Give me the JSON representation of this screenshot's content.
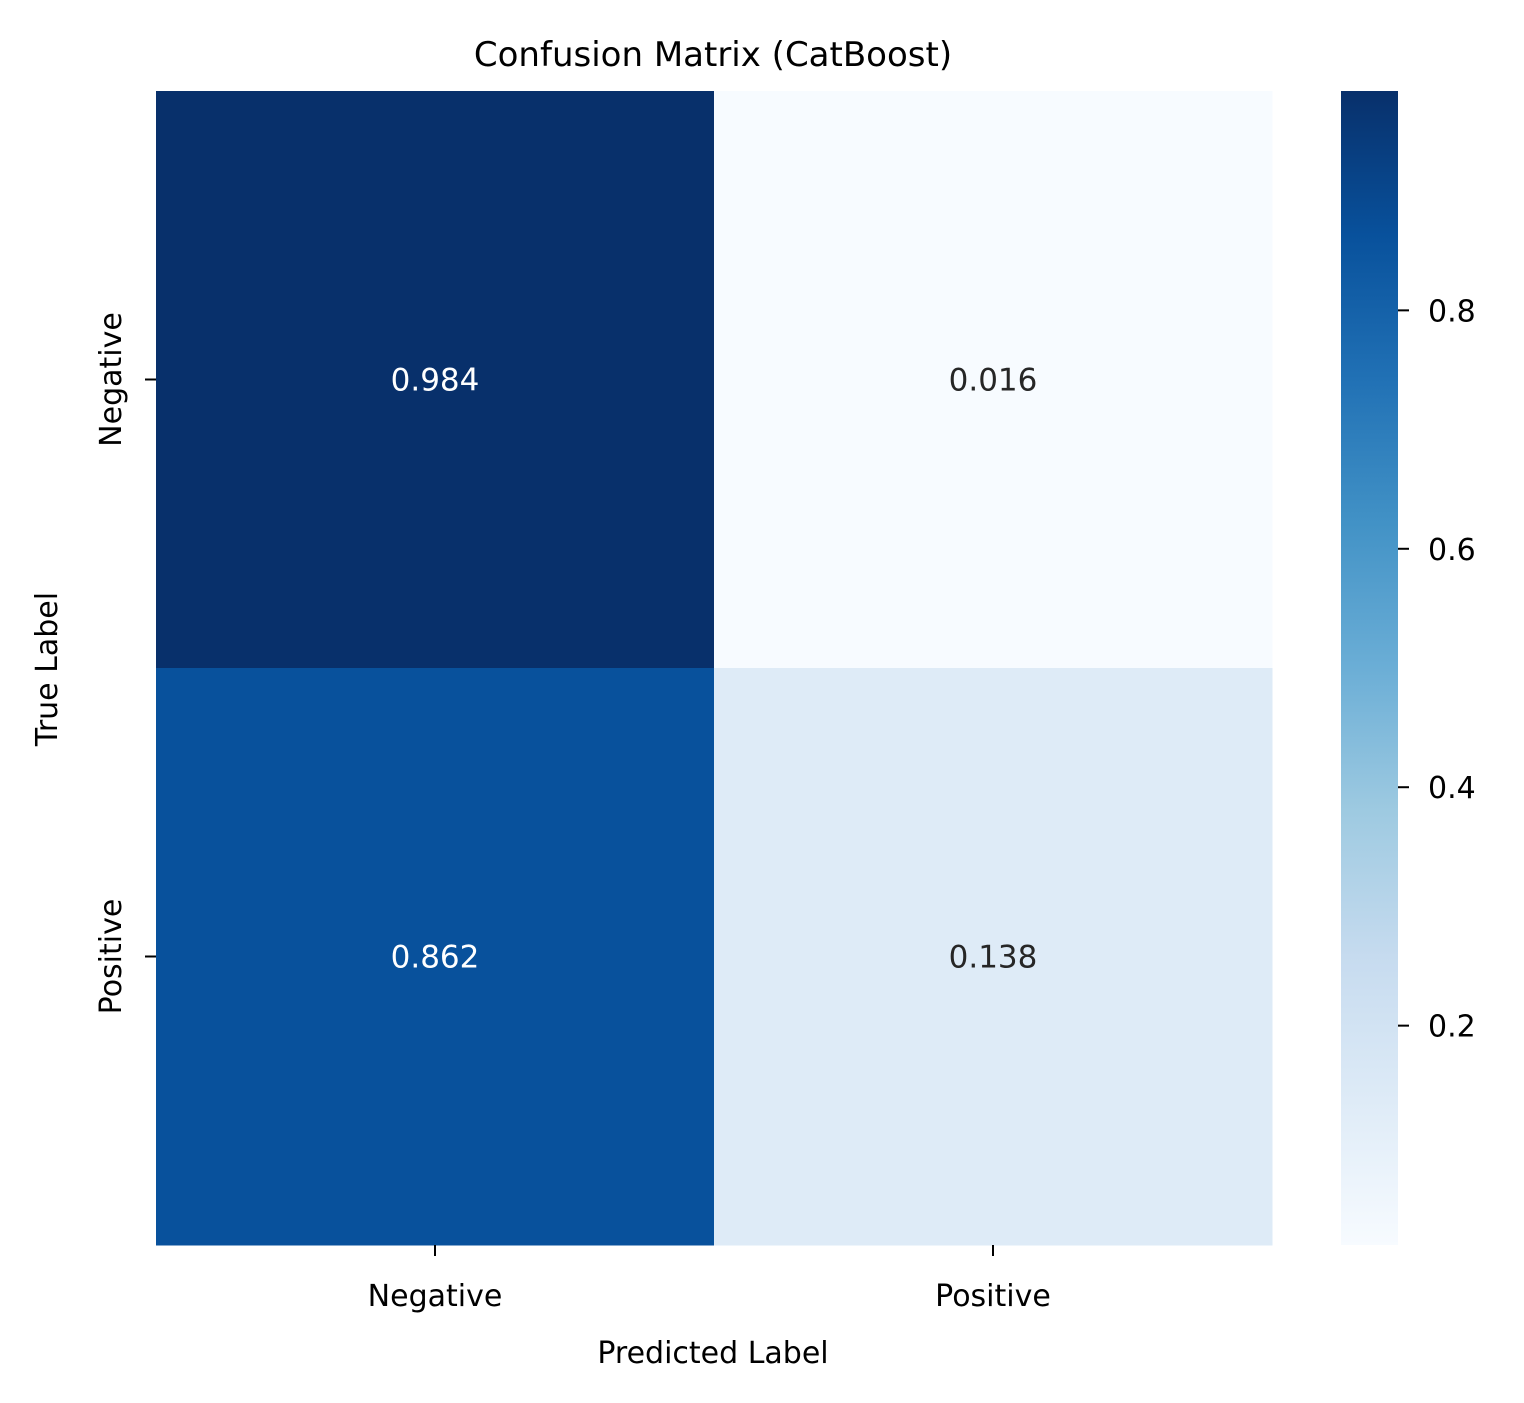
{
  "chart_data": {
    "type": "heatmap",
    "title": "Confusion Matrix (CatBoost)",
    "xlabel": "Predicted Label",
    "ylabel": "True Label",
    "x_categories": [
      "Negative",
      "Positive"
    ],
    "y_categories": [
      "Negative",
      "Positive"
    ],
    "values": [
      [
        0.984,
        0.016
      ],
      [
        0.862,
        0.138
      ]
    ],
    "value_labels": [
      [
        "0.984",
        "0.016"
      ],
      [
        "0.862",
        "0.138"
      ]
    ],
    "colormap": "Blues",
    "colorbar": {
      "range": [
        0.016,
        0.984
      ],
      "ticks": [
        0.2,
        0.4,
        0.6,
        0.8
      ],
      "tick_labels": [
        "0.2",
        "0.4",
        "0.6",
        "0.8"
      ]
    },
    "colors": {
      "cell_0_0": "#08306b",
      "cell_0_1": "#f7fbff",
      "cell_1_0": "#08519c",
      "cell_1_1": "#deebf7",
      "annot_dark_bg": "#ffffff",
      "annot_light_bg": "#262626"
    }
  }
}
